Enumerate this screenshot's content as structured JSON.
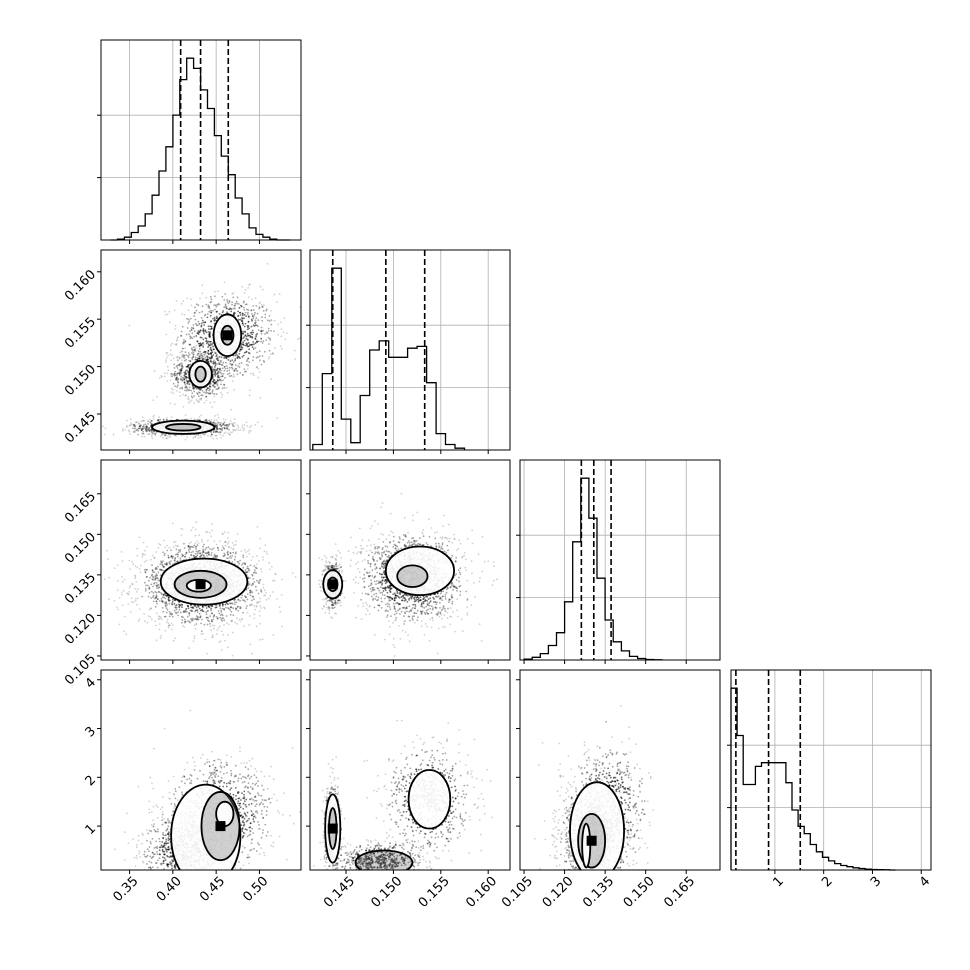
{
  "chart_data": {
    "type": "corner",
    "parameters": [
      {
        "ticks": [
          0.35,
          0.4,
          0.45,
          0.5
        ],
        "tick_labels": [
          "0.35",
          "0.40",
          "0.45",
          "0.50"
        ],
        "range": [
          0.317,
          0.548
        ],
        "quantiles": [
          0.409,
          0.432,
          0.464
        ]
      },
      {
        "ticks": [
          0.145,
          0.15,
          0.155,
          0.16
        ],
        "tick_labels": [
          "0.145",
          "0.150",
          "0.155",
          "0.160"
        ],
        "range": [
          0.1412,
          0.1623
        ],
        "quantiles": [
          0.1436,
          0.1492,
          0.1533
        ]
      },
      {
        "ticks": [
          0.105,
          0.12,
          0.135,
          0.15,
          0.165
        ],
        "tick_labels": [
          "0.105",
          "0.120",
          "0.135",
          "0.150",
          "0.165"
        ],
        "range": [
          0.1035,
          0.1775
        ],
        "quantiles": [
          0.1262,
          0.1308,
          0.1372
        ]
      },
      {
        "ticks": [
          1,
          2,
          3,
          4
        ],
        "tick_labels": [
          "1",
          "2",
          "3",
          "4"
        ],
        "range": [
          0.1,
          4.2
        ],
        "quantiles": [
          0.2,
          0.87,
          1.52
        ]
      }
    ],
    "diagonal_histograms": [
      {
        "bins": [
          0.328,
          0.336,
          0.344,
          0.352,
          0.36,
          0.368,
          0.376,
          0.384,
          0.392,
          0.4,
          0.408,
          0.416,
          0.424,
          0.432,
          0.44,
          0.448,
          0.456,
          0.464,
          0.472,
          0.48,
          0.488,
          0.496,
          0.504,
          0.512,
          0.52,
          0.528,
          0.536
        ],
        "counts": [
          0,
          1,
          3,
          8,
          15,
          28,
          48,
          74,
          100,
          134,
          172,
          195,
          184,
          161,
          141,
          112,
          90,
          70,
          45,
          28,
          13,
          6,
          3,
          1,
          0,
          0
        ]
      },
      {
        "bins": [
          0.1415,
          0.1425,
          0.1435,
          0.1445,
          0.1455,
          0.1465,
          0.1475,
          0.1485,
          0.1495,
          0.1505,
          0.1515,
          0.1525,
          0.1535,
          0.1545,
          0.1555,
          0.1565,
          0.1575
        ],
        "counts": [
          0.03,
          0.42,
          1.0,
          0.17,
          0.04,
          0.3,
          0.55,
          0.6,
          0.51,
          0.51,
          0.56,
          0.57,
          0.37,
          0.09,
          0.03,
          0.01
        ]
      },
      {
        "bins": [
          0.105,
          0.108,
          0.111,
          0.114,
          0.117,
          0.12,
          0.123,
          0.126,
          0.129,
          0.132,
          0.135,
          0.138,
          0.141,
          0.144,
          0.147,
          0.15,
          0.153,
          0.156
        ],
        "counts": [
          0.005,
          0.015,
          0.035,
          0.08,
          0.15,
          0.32,
          0.65,
          1.0,
          0.78,
          0.45,
          0.22,
          0.1,
          0.05,
          0.02,
          0.008,
          0.003,
          0.001
        ]
      },
      {
        "bins": [
          0.1,
          0.225,
          0.35,
          0.475,
          0.6,
          0.725,
          0.85,
          0.975,
          1.1,
          1.225,
          1.35,
          1.475,
          1.6,
          1.725,
          1.85,
          1.975,
          2.1,
          2.225,
          2.35,
          2.475,
          2.6,
          2.725,
          2.85,
          2.975,
          3.1,
          3.225,
          3.35,
          3.475
        ],
        "counts": [
          1.0,
          0.74,
          0.47,
          0.47,
          0.57,
          0.59,
          0.59,
          0.59,
          0.59,
          0.48,
          0.33,
          0.24,
          0.2,
          0.14,
          0.1,
          0.07,
          0.05,
          0.035,
          0.025,
          0.018,
          0.012,
          0.008,
          0.005,
          0.003,
          0.002,
          0.001,
          0
        ]
      }
    ]
  }
}
